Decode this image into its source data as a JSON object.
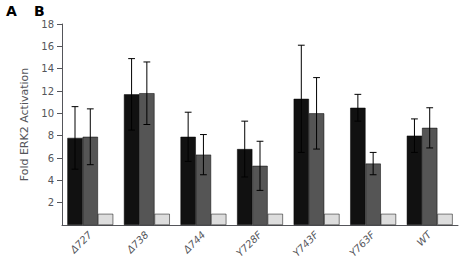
{
  "chart_data": {
    "type": "bar",
    "categories": [
      "Δ727",
      "Δ738",
      "Δ744",
      "Y728F",
      "Y743F",
      "Y763F",
      "WT"
    ],
    "series": [
      {
        "color": "#111111",
        "values": [
          7.8,
          11.7,
          7.9,
          6.8,
          11.3,
          10.5,
          8.0
        ],
        "errors": [
          2.8,
          3.2,
          2.2,
          2.5,
          4.8,
          1.2,
          1.5
        ]
      },
      {
        "color": "#555555",
        "values": [
          7.9,
          11.8,
          6.3,
          5.3,
          10.0,
          5.5,
          8.7
        ],
        "errors": [
          2.5,
          2.8,
          1.8,
          2.2,
          3.2,
          1.0,
          1.8
        ]
      },
      {
        "color": "#dddddd",
        "values": [
          1.0,
          1.0,
          1.0,
          1.0,
          1.0,
          1.0,
          1.0
        ]
      }
    ],
    "ylabel": "Fold ERK2 Activation",
    "ylim": [
      0,
      18
    ],
    "yticks": [
      2,
      4,
      6,
      8,
      10,
      12,
      14,
      16,
      18
    ],
    "grid": false,
    "annotations": [
      "A",
      "B"
    ]
  }
}
